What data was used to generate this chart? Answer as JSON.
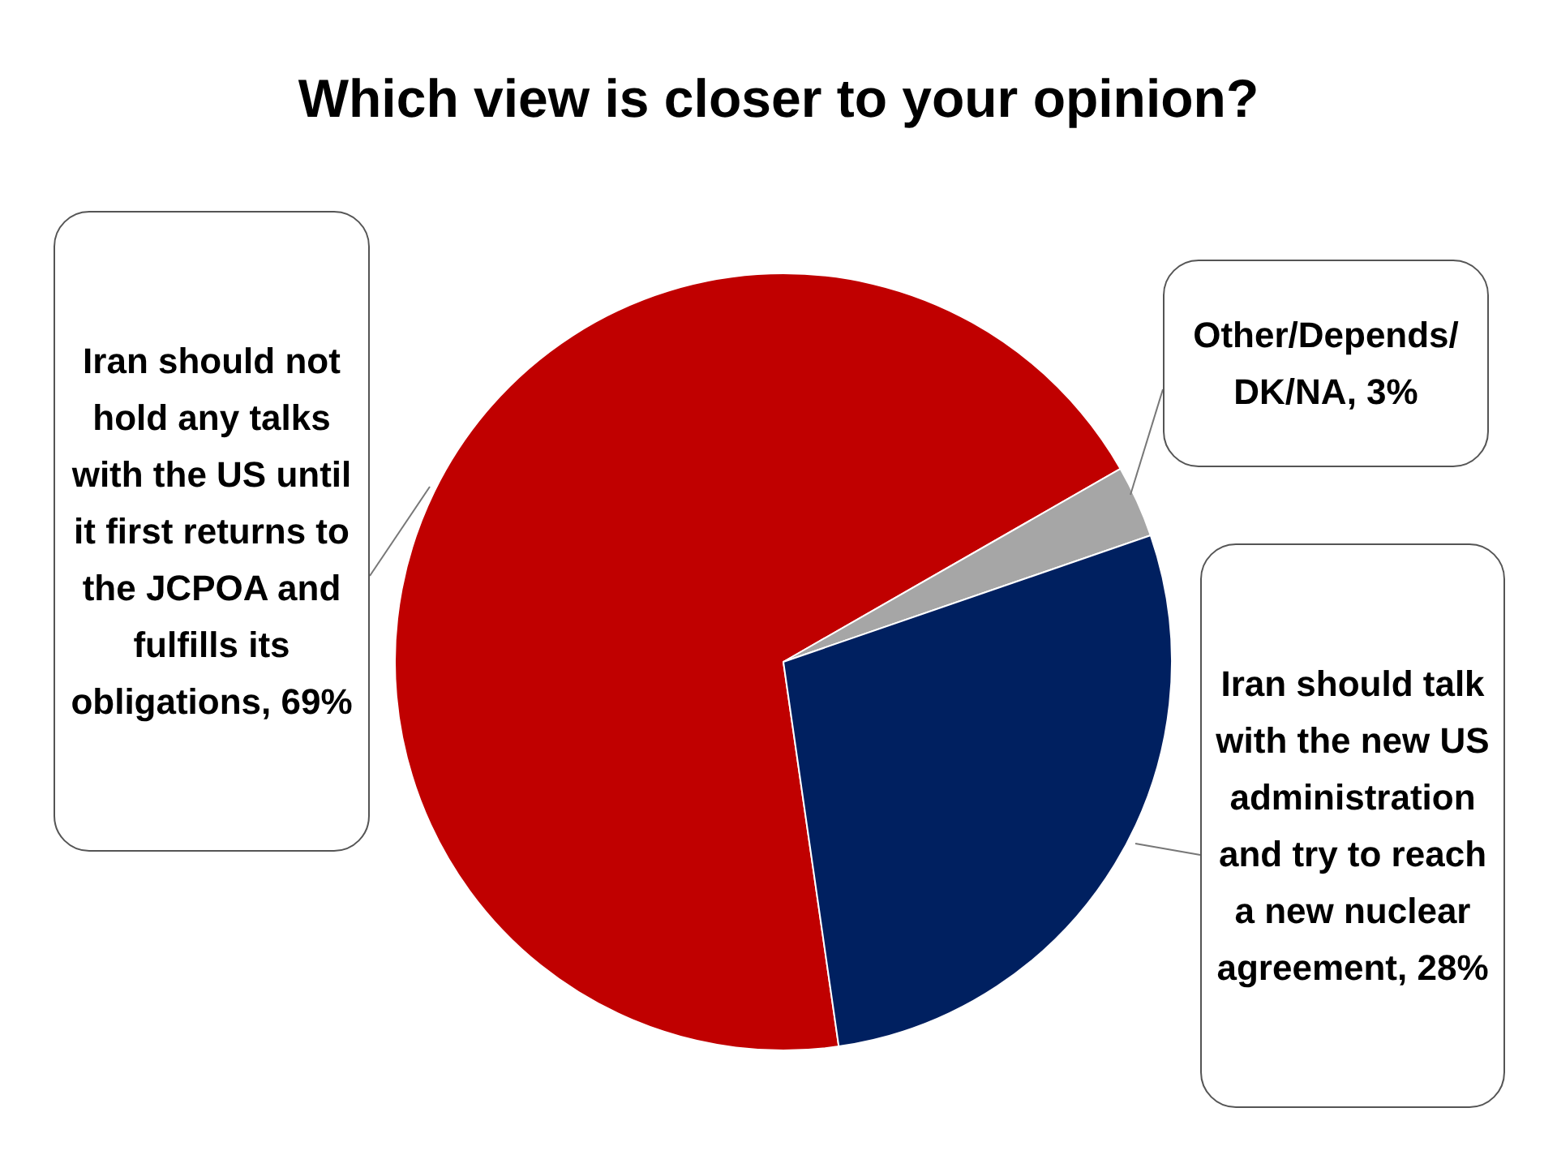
{
  "chart_data": {
    "type": "pie",
    "title": "Which view is closer to your opinion?",
    "categories": [
      "Iran should not hold any talks with the US until it first returns to the JCPOA and fulfills its obligations, 69%",
      "Other/Depends/ DK/NA, 3%",
      "Iran should talk with the new US administration and try to reach a new nuclear agreement, 28%"
    ],
    "values": [
      69,
      3,
      28
    ],
    "colors": [
      "#c00000",
      "#a6a6a6",
      "#002060"
    ],
    "legend": false
  }
}
